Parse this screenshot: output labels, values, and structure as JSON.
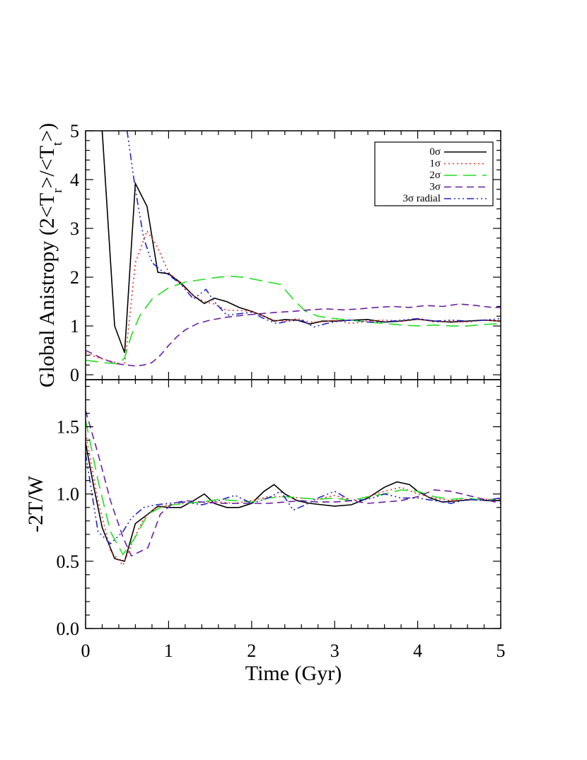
{
  "chart_data": [
    {
      "type": "line",
      "panel": "top",
      "ylabel": "Global Anistropy (2<T_r>/<T_t>)",
      "ylabel_parts": [
        "Global Anistropy (2<T",
        "r",
        ">/<T",
        "t",
        ">)"
      ],
      "xlim": [
        0,
        5
      ],
      "ylim": [
        -0.1,
        5
      ],
      "yticks": [
        0,
        1,
        2,
        3,
        4,
        5
      ],
      "ytick_labels": [
        "0",
        "1",
        "2",
        "3",
        "4",
        "5"
      ],
      "legend_position": "top-right",
      "series": [
        {
          "name": "0σ",
          "color": "#000000",
          "dash": "none",
          "x": [
            0.0,
            0.2,
            0.35,
            0.47,
            0.6,
            0.74,
            0.87,
            1.0,
            1.15,
            1.3,
            1.43,
            1.55,
            1.7,
            1.85,
            2.0,
            2.15,
            2.27,
            2.4,
            2.55,
            2.7,
            2.85,
            3.0,
            3.2,
            3.4,
            3.6,
            3.8,
            4.0,
            4.2,
            4.4,
            4.6,
            4.8,
            5.0
          ],
          "y": [
            null,
            5.0,
            1.0,
            0.45,
            3.92,
            3.45,
            2.1,
            2.07,
            1.88,
            1.62,
            1.46,
            1.57,
            1.5,
            1.38,
            1.3,
            1.2,
            1.1,
            1.13,
            1.12,
            1.04,
            1.1,
            1.1,
            1.12,
            1.13,
            1.08,
            1.1,
            1.14,
            1.1,
            1.08,
            1.1,
            1.12,
            1.1
          ]
        },
        {
          "name": "1σ",
          "color": "#ee2a24",
          "dash": "2,4",
          "x": [
            0.0,
            0.15,
            0.3,
            0.47,
            0.6,
            0.74,
            0.87,
            1.0,
            1.15,
            1.3,
            1.43,
            1.55,
            1.7,
            1.85,
            2.0,
            2.15,
            2.27,
            2.4,
            2.55,
            2.7,
            2.85,
            3.0,
            3.2,
            3.4,
            3.6,
            3.8,
            4.0,
            4.2,
            4.4,
            4.6,
            4.8,
            5.0
          ],
          "y": [
            0.45,
            0.35,
            0.28,
            0.2,
            2.3,
            2.95,
            2.6,
            2.1,
            1.85,
            1.62,
            1.5,
            1.45,
            1.32,
            1.32,
            1.3,
            1.2,
            1.12,
            1.1,
            1.15,
            1.08,
            1.08,
            1.12,
            1.05,
            1.1,
            1.12,
            1.1,
            1.15,
            1.08,
            1.1,
            1.08,
            1.12,
            1.1
          ]
        },
        {
          "name": "2σ",
          "color": "#22dd22",
          "dash": "18,9",
          "x": [
            0.0,
            0.2,
            0.4,
            0.47,
            0.55,
            0.65,
            0.8,
            1.0,
            1.2,
            1.4,
            1.6,
            1.75,
            1.9,
            2.05,
            2.2,
            2.35,
            2.5,
            2.65,
            2.8,
            3.0,
            3.2,
            3.4,
            3.6,
            3.8,
            4.0,
            4.2,
            4.4,
            4.6,
            4.8,
            5.0
          ],
          "y": [
            0.3,
            0.25,
            0.22,
            0.35,
            0.8,
            1.2,
            1.55,
            1.78,
            1.9,
            1.95,
            2.0,
            2.02,
            2.0,
            1.95,
            1.9,
            1.85,
            1.55,
            1.3,
            1.2,
            1.15,
            1.12,
            1.08,
            1.05,
            1.02,
            1.0,
            1.02,
            1.0,
            1.0,
            1.03,
            1.05
          ]
        },
        {
          "name": "3σ",
          "color": "#6a1fa2",
          "dash": "10,6",
          "x": [
            0.0,
            0.1,
            0.2,
            0.3,
            0.4,
            0.5,
            0.6,
            0.7,
            0.8,
            0.9,
            1.0,
            1.1,
            1.2,
            1.35,
            1.5,
            1.7,
            1.9,
            2.1,
            2.3,
            2.5,
            2.7,
            2.9,
            3.1,
            3.3,
            3.5,
            3.7,
            3.9,
            4.1,
            4.3,
            4.5,
            4.7,
            4.9,
            5.0
          ],
          "y": [
            0.5,
            0.42,
            0.33,
            0.27,
            0.22,
            0.2,
            0.18,
            0.2,
            0.25,
            0.4,
            0.6,
            0.78,
            0.92,
            1.05,
            1.12,
            1.18,
            1.22,
            1.25,
            1.28,
            1.3,
            1.33,
            1.35,
            1.33,
            1.35,
            1.38,
            1.4,
            1.38,
            1.42,
            1.4,
            1.45,
            1.42,
            1.38,
            1.38
          ]
        },
        {
          "name": "3σ radial",
          "color": "#2222cc",
          "dash": "10,4,2,4,2,4,2,4",
          "x": [
            0.5,
            0.6,
            0.7,
            0.8,
            0.9,
            1.0,
            1.15,
            1.3,
            1.45,
            1.55,
            1.7,
            1.85,
            2.0,
            2.15,
            2.3,
            2.45,
            2.6,
            2.75,
            2.9,
            3.05,
            3.2,
            3.4,
            3.6,
            3.8,
            4.0,
            4.2,
            4.4,
            4.6,
            4.8,
            5.0
          ],
          "y": [
            5.0,
            3.8,
            2.8,
            2.3,
            2.15,
            2.05,
            1.85,
            1.55,
            1.75,
            1.5,
            1.22,
            1.25,
            1.28,
            1.15,
            1.05,
            1.1,
            1.12,
            0.98,
            1.05,
            1.1,
            1.12,
            1.08,
            1.08,
            1.12,
            1.15,
            1.1,
            1.12,
            1.1,
            1.12,
            1.15
          ]
        }
      ]
    },
    {
      "type": "line",
      "panel": "bottom",
      "xlabel": "Time (Gyr)",
      "ylabel": "-2T/W",
      "xlim": [
        0,
        5
      ],
      "ylim": [
        0,
        1.85
      ],
      "xticks": [
        0,
        1,
        2,
        3,
        4,
        5
      ],
      "xtick_labels": [
        "0",
        "1",
        "2",
        "3",
        "4",
        "5"
      ],
      "yticks": [
        0,
        0.5,
        1.0,
        1.5
      ],
      "ytick_labels": [
        "0.0",
        "0.5",
        "1.0",
        "1.5"
      ],
      "series": [
        {
          "name": "0σ",
          "color": "#000000",
          "dash": "none",
          "x": [
            0.0,
            0.1,
            0.2,
            0.35,
            0.47,
            0.6,
            0.75,
            0.87,
            1.0,
            1.15,
            1.3,
            1.43,
            1.55,
            1.7,
            1.85,
            2.0,
            2.15,
            2.27,
            2.4,
            2.55,
            2.7,
            2.85,
            3.0,
            3.2,
            3.4,
            3.6,
            3.75,
            3.9,
            4.0,
            4.15,
            4.3,
            4.5,
            4.7,
            4.85,
            5.0
          ],
          "y": [
            1.38,
            1.05,
            0.75,
            0.52,
            0.5,
            0.78,
            0.85,
            0.91,
            0.9,
            0.9,
            0.95,
            1.0,
            0.93,
            0.9,
            0.9,
            0.93,
            1.02,
            1.07,
            1.0,
            0.95,
            0.93,
            0.92,
            0.91,
            0.92,
            0.97,
            1.05,
            1.09,
            1.07,
            1.02,
            0.97,
            0.94,
            0.95,
            0.96,
            0.95,
            0.95
          ]
        },
        {
          "name": "1σ",
          "color": "#ee2a24",
          "dash": "2,4",
          "x": [
            0.0,
            0.15,
            0.3,
            0.45,
            0.55,
            0.7,
            0.85,
            1.0,
            1.2,
            1.4,
            1.6,
            1.8,
            2.0,
            2.2,
            2.4,
            2.6,
            2.8,
            3.0,
            3.2,
            3.4,
            3.6,
            3.8,
            4.0,
            4.2,
            4.4,
            4.6,
            4.8,
            5.0
          ],
          "y": [
            1.45,
            0.95,
            0.58,
            0.47,
            0.62,
            0.82,
            0.9,
            0.92,
            0.93,
            0.94,
            0.94,
            0.93,
            0.95,
            0.98,
            0.98,
            0.97,
            0.96,
            0.99,
            0.95,
            0.98,
            1.02,
            1.05,
            1.0,
            0.97,
            0.95,
            0.96,
            0.96,
            0.96
          ]
        },
        {
          "name": "2σ",
          "color": "#22dd22",
          "dash": "18,9",
          "x": [
            0.0,
            0.15,
            0.3,
            0.45,
            0.6,
            0.75,
            0.9,
            1.05,
            1.2,
            1.4,
            1.6,
            1.8,
            2.0,
            2.2,
            2.4,
            2.6,
            2.8,
            3.0,
            3.2,
            3.4,
            3.6,
            3.8,
            4.0,
            4.2,
            4.4,
            4.6,
            4.8,
            5.0
          ],
          "y": [
            1.55,
            1.1,
            0.72,
            0.55,
            0.68,
            0.85,
            0.9,
            0.92,
            0.93,
            0.94,
            0.96,
            0.95,
            0.94,
            0.97,
            0.98,
            0.97,
            0.96,
            0.97,
            0.95,
            0.98,
            1.0,
            1.03,
            1.02,
            0.98,
            0.96,
            0.97,
            0.95,
            0.97
          ]
        },
        {
          "name": "3σ",
          "color": "#6a1fa2",
          "dash": "10,6",
          "x": [
            0.0,
            0.15,
            0.3,
            0.45,
            0.55,
            0.75,
            0.9,
            1.05,
            1.2,
            1.4,
            1.6,
            1.8,
            2.0,
            2.2,
            2.4,
            2.6,
            2.8,
            3.0,
            3.2,
            3.4,
            3.6,
            3.8,
            4.0,
            4.2,
            4.4,
            4.6,
            4.8,
            5.0
          ],
          "y": [
            1.62,
            1.3,
            0.95,
            0.68,
            0.54,
            0.6,
            0.85,
            0.93,
            0.95,
            0.94,
            0.93,
            0.93,
            0.93,
            0.93,
            0.94,
            0.95,
            0.94,
            0.94,
            0.95,
            0.93,
            0.94,
            0.95,
            0.98,
            1.03,
            1.02,
            0.99,
            0.96,
            0.93
          ]
        },
        {
          "name": "3σ radial",
          "color": "#2222cc",
          "dash": "10,4,2,4,2,4,2,4",
          "x": [
            0.0,
            0.15,
            0.3,
            0.45,
            0.55,
            0.7,
            0.85,
            1.0,
            1.2,
            1.4,
            1.6,
            1.8,
            2.0,
            2.2,
            2.35,
            2.5,
            2.65,
            2.8,
            3.0,
            3.2,
            3.4,
            3.6,
            3.8,
            4.0,
            4.2,
            4.4,
            4.6,
            4.8,
            5.0
          ],
          "y": [
            1.3,
            0.72,
            0.63,
            0.72,
            0.82,
            0.9,
            0.92,
            0.93,
            0.94,
            0.92,
            0.95,
            0.99,
            0.93,
            0.97,
            1.02,
            0.88,
            0.92,
            0.97,
            1.02,
            0.95,
            0.96,
            1.0,
            0.97,
            0.97,
            0.95,
            0.93,
            0.96,
            0.95,
            0.97
          ]
        }
      ]
    }
  ]
}
